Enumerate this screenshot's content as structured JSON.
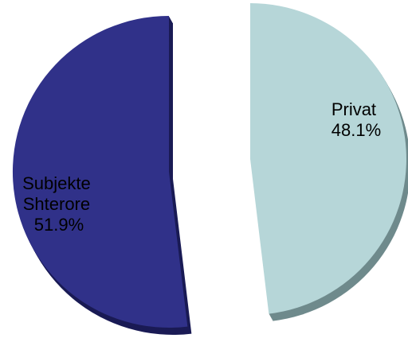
{
  "chart_data": {
    "type": "pie",
    "title": "",
    "exploded": true,
    "slices": [
      {
        "label_lines": [
          "Privat"
        ],
        "value": 48.1,
        "value_label": "48.1%",
        "color": "#b6d6d8",
        "side_color": "#6f8a8c"
      },
      {
        "label_lines": [
          "Subjekte",
          "Shterore"
        ],
        "value": 51.9,
        "value_label": "51.9%",
        "color": "#303189",
        "side_color": "#1a1b55"
      }
    ]
  }
}
